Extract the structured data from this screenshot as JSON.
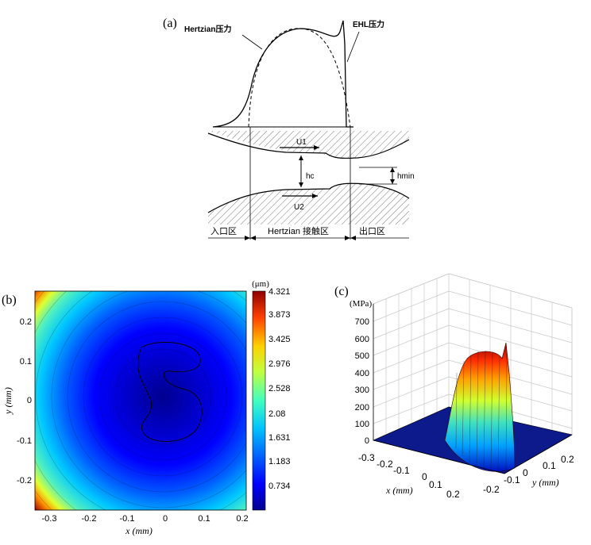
{
  "panel_a": {
    "label": "(a)",
    "hertzian_pressure_label": "Hertzian压力",
    "ehl_pressure_label": "EHL压力",
    "u1": "U1",
    "u2": "U2",
    "hc": "hc",
    "hmin": "hmin",
    "inlet_zone": "入口区",
    "contact_zone": "Hertzian 接触区",
    "outlet_zone": "出口区"
  },
  "panel_b": {
    "label": "(b)",
    "colorbar_unit": "(μm)",
    "colorbar_ticks": [
      "4.321",
      "3.873",
      "3.425",
      "2.976",
      "2.528",
      "2.08",
      "1.631",
      "1.183",
      "0.734"
    ],
    "xlabel": "x (mm)",
    "ylabel": "y (mm)",
    "xticks": [
      "-0.3",
      "-0.2",
      "-0.1",
      "0",
      "0.1",
      "0.2"
    ],
    "yticks": [
      "0.2",
      "0.1",
      "0",
      "-0.1",
      "-0.2"
    ],
    "colormap": [
      "#00008f",
      "#0000ff",
      "#00a0ff",
      "#30e0d0",
      "#c0ff40",
      "#ffd000",
      "#ff5000",
      "#a00000"
    ]
  },
  "panel_c": {
    "label": "(c)",
    "zlabel": "(MPa)",
    "zticks": [
      "700",
      "600",
      "500",
      "400",
      "300",
      "200",
      "100",
      "0"
    ],
    "xlabel": "x (mm)",
    "ylabel": "y (mm)",
    "xticks": [
      "-0.3",
      "-0.2",
      "-0.1",
      "0",
      "0.1",
      "0.2"
    ],
    "yticks": [
      "0.2",
      "0.1",
      "0",
      "-0.1",
      "-0.2"
    ]
  }
}
